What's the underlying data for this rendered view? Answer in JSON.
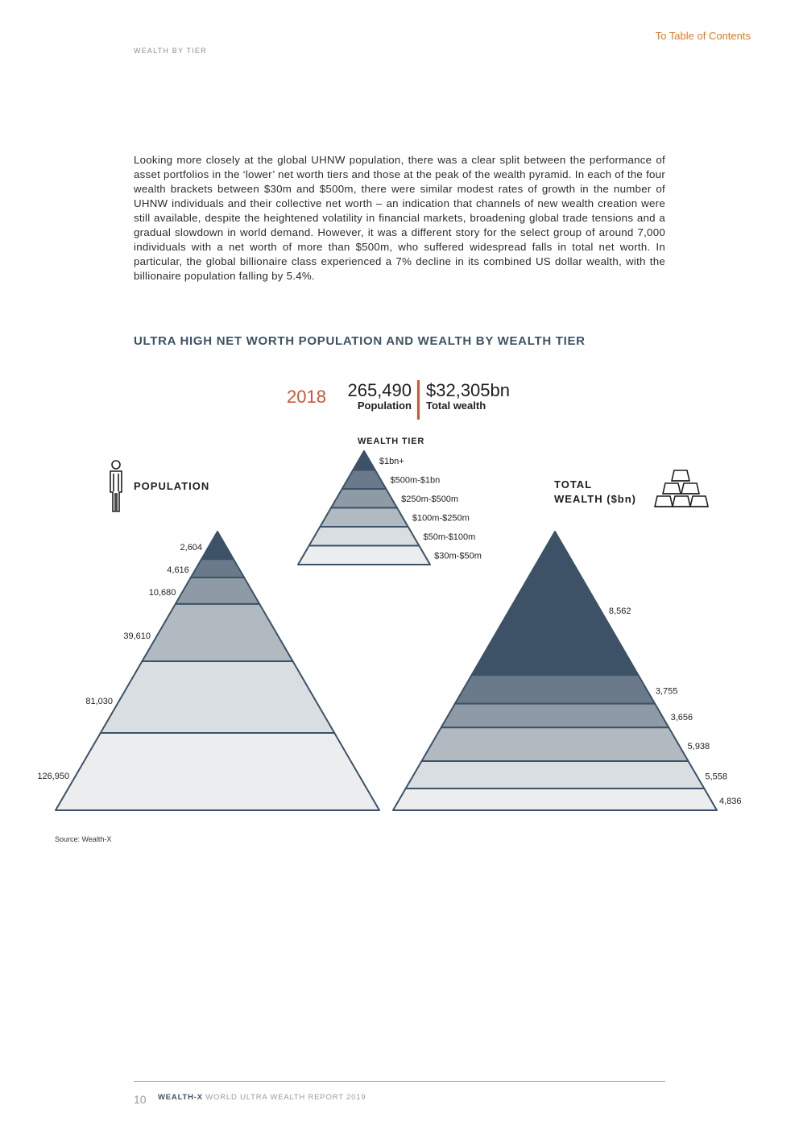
{
  "header": {
    "toc_link": "To Table of Contents",
    "section": "WEALTH BY TIER"
  },
  "intro_text": "Looking more closely at the global UHNW population, there was a clear split between the performance of asset portfolios in the ‘lower’ net worth tiers and those at the peak of the wealth pyramid. In each of the four wealth brackets between $30m and $500m, there were similar modest rates of growth in the number of UHNW individuals and their collective net worth – an indication that channels of new wealth creation were still available, despite the heightened volatility in financial markets, broadening global trade tensions and a gradual slowdown in world demand. However, it was a different story for the select group of around 7,000 individuals with a net worth of more than $500m, who suffered widespread falls in total net worth. In particular, the global billionaire class experienced a 7% decline in its combined US dollar wealth, with the billionaire population falling by 5.4%.",
  "chart_title": "ULTRA HIGH NET WORTH POPULATION AND WEALTH BY WEALTH TIER",
  "summary": {
    "year": "2018",
    "population_value": "265,490",
    "population_label": "Population",
    "wealth_value": "$32,305bn",
    "wealth_label": "Total wealth"
  },
  "labels": {
    "wealth_tier_heading": "WEALTH TIER",
    "population_heading": "POPULATION",
    "wealth_heading_line1": "TOTAL",
    "wealth_heading_line2": "WEALTH ($bn)"
  },
  "icons": {
    "population": "person-icon",
    "wealth": "gold-bars-icon"
  },
  "colors": {
    "accent": "#d35233",
    "link": "#e07a2a",
    "title": "#3d5266",
    "stroke": "#3d5266",
    "tier_fills": [
      "#3d5266",
      "#6b7a8a",
      "#8e9aa6",
      "#b1b9c1",
      "#d9dee2",
      "#ebedef"
    ]
  },
  "chart_data": {
    "type": "pyramid",
    "tiers": [
      "$1bn+",
      "$500m-$1bn",
      "$250m-$500m",
      "$100m-$250m",
      "$50m-$100m",
      "$30m-$50m"
    ],
    "series": [
      {
        "name": "POPULATION",
        "values": [
          2604,
          4616,
          10680,
          39610,
          81030,
          126950
        ],
        "labels": [
          "2,604",
          "4,616",
          "10,680",
          "39,610",
          "81,030",
          "126,950"
        ]
      },
      {
        "name": "TOTAL WEALTH ($bn)",
        "values": [
          8562,
          3755,
          3656,
          5938,
          5558,
          4836
        ],
        "labels": [
          "8,562",
          "3,755",
          "3,656",
          "5,938",
          "5,558",
          "4,836"
        ]
      }
    ],
    "totals": {
      "population": 265490,
      "wealth_bn": 32305,
      "year": 2018
    }
  },
  "source": "Source: Wealth-X",
  "footer": {
    "page_number": "10",
    "brand": "WEALTH-X",
    "report": "WORLD ULTRA WEALTH REPORT 2019"
  }
}
